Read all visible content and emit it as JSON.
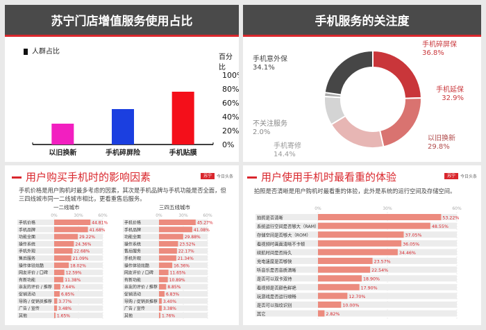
{
  "panels": {
    "p1_title": "苏宁门店增值服务使用占比",
    "p2_title": "手机服务的关注度",
    "p3_title": "用户购买手机时的影响因素",
    "p3_desc": "手机价格是用户购机时最多考虑的因素，其次是手机品牌与手机功能是否全面，但三四线城市同一二线城市相比，更看重售后服务。",
    "p4_title": "用户使用手机时最看重的体验",
    "p4_desc": "拍照是否清晰是用户购机时最看重的体验，此外是系统的运行空间及存储空间。"
  },
  "colors": {
    "red": "#d9262c",
    "header": "#4a4a4a",
    "salmon": "#ec8b7e",
    "track": "#ececec"
  },
  "chart_data": [
    {
      "type": "bar",
      "legend": "人群占比",
      "ylabel": "百分比",
      "categories": [
        "以旧换新",
        "手机碎屏险",
        "手机贴膜"
      ],
      "values": [
        30,
        51,
        76
      ],
      "colors": [
        "#f21fc0",
        "#1b3fe0",
        "#f40f1a"
      ],
      "ylim": [
        0,
        100
      ],
      "yticks": [
        "0%",
        "20%",
        "40%",
        "60%",
        "80%",
        "100%"
      ]
    },
    {
      "type": "pie",
      "donut": true,
      "slices": [
        {
          "name": "手机碎屏保",
          "value": 36.8,
          "label": "36.8%",
          "color": "#c9363a"
        },
        {
          "name": "手机延保",
          "value": 32.9,
          "label": "32.9%",
          "color": "#d97370"
        },
        {
          "name": "以旧换新",
          "value": 29.8,
          "label": "29.8%",
          "color": "#e7b6b4"
        },
        {
          "name": "手机寄修",
          "value": 14.4,
          "label": "14.4%",
          "color": "#d4d4d4"
        },
        {
          "name": "不关注服务",
          "value": 2.0,
          "label": "2.0%",
          "color": "#a9a9a9"
        },
        {
          "name": "手机意外保",
          "value": 34.1,
          "label": "34.1%",
          "color": "#464646"
        }
      ]
    },
    {
      "type": "bar",
      "orientation": "horizontal",
      "subtitle": "一二线城市",
      "xlim": [
        0,
        60
      ],
      "xticks": [
        "0%",
        "30%",
        "60%"
      ],
      "categories": [
        "手机价格",
        "手机品牌",
        "功能全面",
        "操作系统",
        "手机外观",
        "售后服务",
        "操作体验炫酷",
        "网友评价 / 口碑",
        "有新功能",
        "亲友的评价 / 推荐",
        "促销活动",
        "导购 / 促销员推荐",
        "广告 / 宣传",
        "其他"
      ],
      "values": [
        44.81,
        41.68,
        29.22,
        24.36,
        22.68,
        21.09,
        18.02,
        12.59,
        11.38,
        7.64,
        6.85,
        3.77,
        3.48,
        1.65
      ],
      "labels": [
        "44.81%",
        "41.68%",
        "29.22%",
        "24.36%",
        "22.68%",
        "21.09%",
        "18.02%",
        "12.59%",
        "11.38%",
        "7.64%",
        "6.85%",
        "3.77%",
        "3.48%",
        "1.65%"
      ]
    },
    {
      "type": "bar",
      "orientation": "horizontal",
      "subtitle": "三四五线城市",
      "xlim": [
        0,
        60
      ],
      "xticks": [
        "0%",
        "30%",
        "60%"
      ],
      "categories": [
        "手机价格",
        "手机品牌",
        "功能全面",
        "操作系统",
        "售后服务",
        "手机外观",
        "操作体验炫酷",
        "网友评价 / 口碑",
        "有新功能",
        "亲友的评价 / 推荐",
        "促销活动",
        "导购 / 促销员推荐",
        "广告 / 宣传",
        "其他"
      ],
      "values": [
        45.27,
        41.08,
        29.88,
        23.52,
        22.17,
        21.34,
        16.36,
        11.65,
        10.89,
        8.85,
        6.83,
        3.4,
        3.38,
        1.76
      ],
      "labels": [
        "45.27%",
        "41.08%",
        "29.88%",
        "23.52%",
        "22.17%",
        "21.34%",
        "16.36%",
        "11.65%",
        "10.89%",
        "8.85%",
        "6.83%",
        "3.40%",
        "3.38%",
        "1.76%"
      ]
    },
    {
      "type": "bar",
      "orientation": "horizontal",
      "xlim": [
        0,
        60
      ],
      "xticks": [
        "0%",
        "30%",
        "60%"
      ],
      "categories": [
        "拍照是否清晰",
        "系统运行空间是否够大（RAM）",
        "存储空间是否够大（ROM）",
        "看视频时画面清晰不卡顿",
        "续航时间是否持久",
        "充电速度是否够快",
        "听音乐是否音质清晰",
        "是否可以双卡双待",
        "看视频是否颜色鲜艳",
        "玩游戏是否运行顺畅",
        "是否可以指纹识别",
        "其它"
      ],
      "values": [
        53.22,
        48.55,
        37.05,
        36.05,
        34.46,
        23.57,
        22.54,
        18.9,
        17.9,
        12.7,
        10.0,
        2.82
      ],
      "labels": [
        "53.22%",
        "48.55%",
        "37.05%",
        "36.05%",
        "34.46%",
        "23.57%",
        "22.54%",
        "18.90%",
        "17.90%",
        "12.70%",
        "10.00%",
        "2.82%"
      ]
    }
  ]
}
